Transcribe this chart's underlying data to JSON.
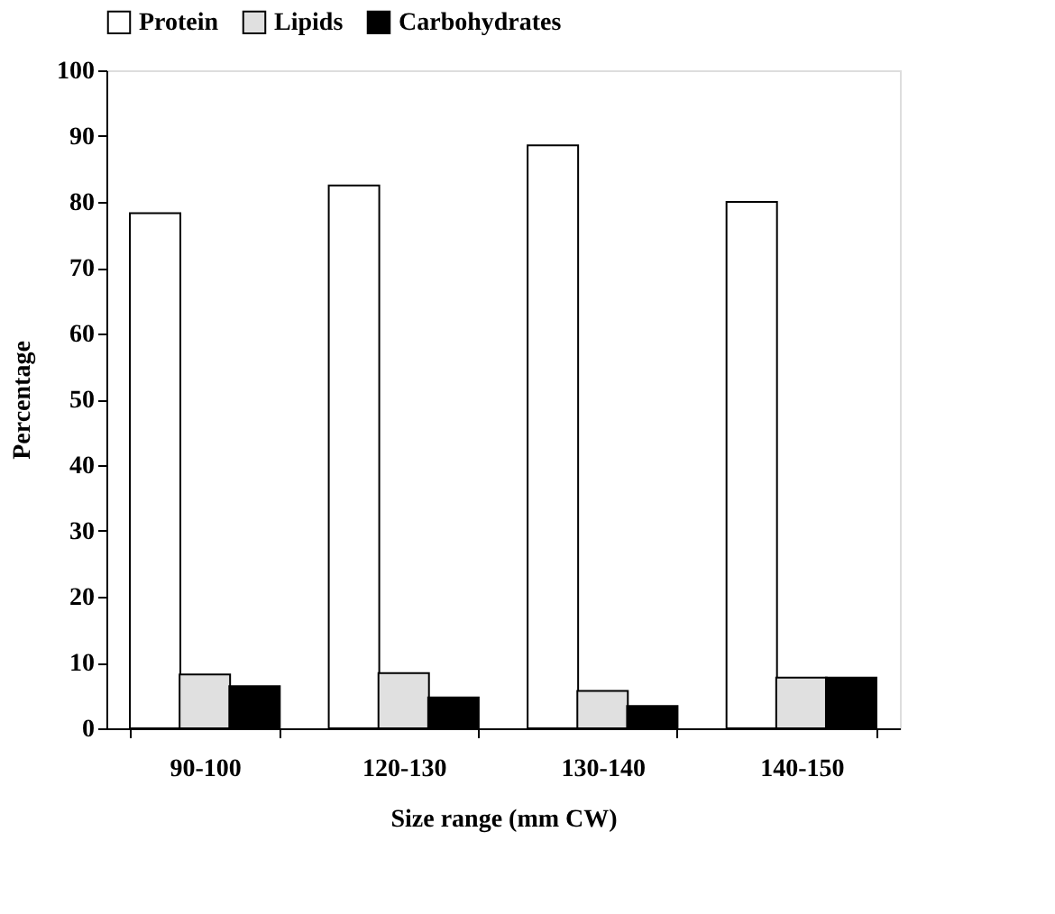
{
  "chart_data": {
    "type": "bar",
    "xlabel": "Size range (mm CW)",
    "ylabel": "Percentage",
    "categories": [
      "90-100",
      "120-130",
      "130-140",
      "140-150"
    ],
    "series": [
      {
        "name": "Protein",
        "color": "#ffffff",
        "values": [
          78.3,
          82.5,
          88.6,
          80.0
        ]
      },
      {
        "name": "Lipids",
        "color": "#e0e0e0",
        "values": [
          8.2,
          8.4,
          5.7,
          7.7
        ]
      },
      {
        "name": "Carbohydrates",
        "color": "#000000",
        "values": [
          6.4,
          4.7,
          3.4,
          7.7
        ]
      }
    ],
    "ylim": [
      0,
      100
    ],
    "yticks": [
      0,
      10,
      20,
      30,
      40,
      50,
      60,
      70,
      80,
      90,
      100
    ],
    "grid": false,
    "legend": "top"
  }
}
